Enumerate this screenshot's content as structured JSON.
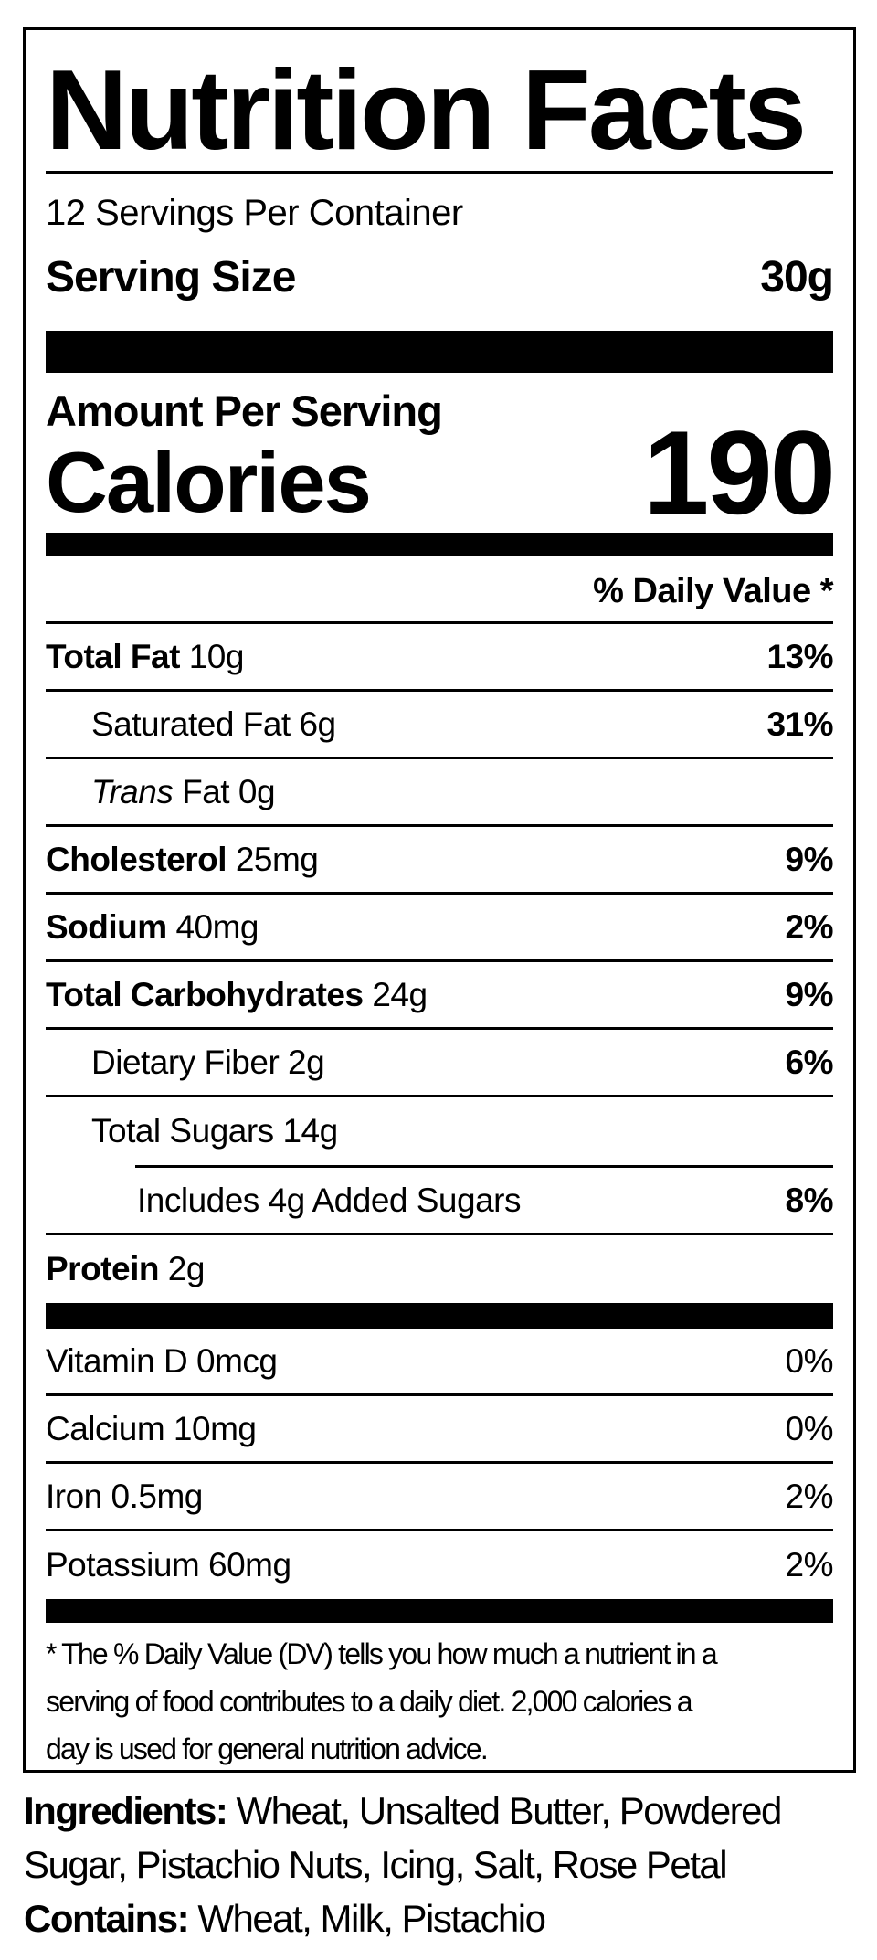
{
  "colors": {
    "ink": "#000000",
    "background": "#ffffff"
  },
  "label": {
    "title": "Nutrition Facts",
    "servings_per_container": "12 Servings Per Container",
    "serving_size_label": "Serving Size",
    "serving_size_value": "30g",
    "amount_per_serving": "Amount Per Serving",
    "calories_label": "Calories",
    "calories_value": "190",
    "daily_value_header": "% Daily Value *",
    "rows": [
      {
        "bold": "Total Fat",
        "text": " 10g",
        "dv": "13%"
      },
      {
        "text": "Saturated Fat 6g",
        "dv": "31%"
      },
      {
        "italic": "Trans",
        "text": " Fat 0g"
      },
      {
        "bold": "Cholesterol",
        "text": " 25mg",
        "dv": "9%"
      },
      {
        "bold": "Sodium",
        "text": " 40mg",
        "dv": "2%"
      },
      {
        "bold": "Total Carbohydrates",
        "text": " 24g",
        "dv": "9%"
      },
      {
        "text": "Dietary Fiber 2g",
        "dv": "6%"
      },
      {
        "text": "Total Sugars 14g"
      },
      {
        "text": "Includes 4g Added Sugars",
        "dv": "8%"
      },
      {
        "bold": "Protein",
        "text": " 2g"
      }
    ],
    "micro_rows": [
      {
        "text": "Vitamin D 0mcg",
        "dv": "0%"
      },
      {
        "text": "Calcium 10mg",
        "dv": "0%"
      },
      {
        "text": "Iron 0.5mg",
        "dv": "2%"
      },
      {
        "text": "Potassium 60mg",
        "dv": "2%"
      }
    ],
    "footnote": {
      "line1": "* The % Daily Value (DV) tells you how much a nutrient in a",
      "line2": "serving of food contributes to a daily diet. 2,000 calories a",
      "line3": "day is used for general nutrition advice."
    }
  },
  "ingredients": {
    "label": "Ingredients:",
    "line1_rest": " Wheat, Unsalted Butter, Powdered",
    "line2": "Sugar, Pistachio Nuts, Icing, Salt, Rose Petal"
  },
  "contains": {
    "label": "Contains:",
    "text": " Wheat, Milk, Pistachio"
  }
}
